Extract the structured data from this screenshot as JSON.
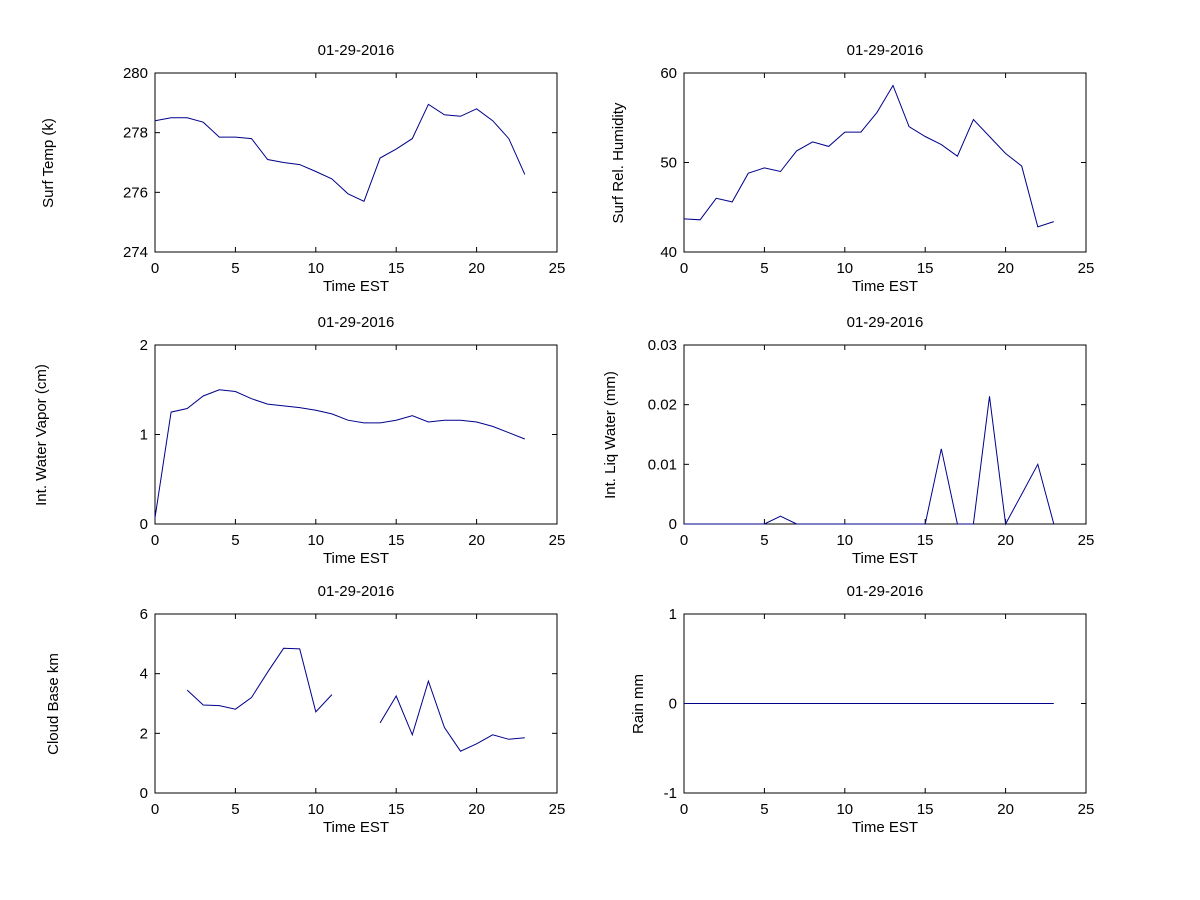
{
  "figure": {
    "background_color": "#ffffff",
    "axis_color": "#000000",
    "text_color": "#000000",
    "line_color": "#00008B"
  },
  "chart_data": [
    {
      "type": "line",
      "title": "01-29-2016",
      "xlabel": "Time EST",
      "ylabel": "Surf Temp (k)",
      "xlim": [
        0,
        25
      ],
      "ylim": [
        274,
        280
      ],
      "xticks": [
        "0",
        "5",
        "10",
        "15",
        "20",
        "25"
      ],
      "xtick_values": [
        0,
        5,
        10,
        15,
        20,
        25
      ],
      "yticks": [
        "274",
        "276",
        "278",
        "280"
      ],
      "ytick_values": [
        274,
        276,
        278,
        280
      ],
      "grid": false,
      "legend": null,
      "x": [
        0,
        1,
        2,
        3,
        4,
        5,
        6,
        7,
        8,
        9,
        10,
        11,
        12,
        13,
        14,
        15,
        16,
        17,
        18,
        19,
        20,
        21,
        22,
        23
      ],
      "y": [
        278.4,
        278.5,
        278.5,
        278.35,
        277.85,
        277.85,
        277.8,
        277.1,
        277.0,
        276.93,
        276.7,
        276.45,
        275.95,
        275.7,
        277.15,
        277.45,
        277.8,
        278.95,
        278.6,
        278.55,
        278.8,
        278.4,
        277.8,
        276.6
      ]
    },
    {
      "type": "line",
      "title": "01-29-2016",
      "xlabel": "Time EST",
      "ylabel": "Surf Rel. Humidity",
      "xlim": [
        0,
        25
      ],
      "ylim": [
        40,
        60
      ],
      "xticks": [
        "0",
        "5",
        "10",
        "15",
        "20",
        "25"
      ],
      "xtick_values": [
        0,
        5,
        10,
        15,
        20,
        25
      ],
      "yticks": [
        "40",
        "50",
        "60"
      ],
      "ytick_values": [
        40,
        50,
        60
      ],
      "grid": false,
      "legend": null,
      "x": [
        0,
        1,
        2,
        3,
        4,
        5,
        6,
        7,
        8,
        9,
        10,
        11,
        12,
        13,
        14,
        15,
        16,
        17,
        18,
        19,
        20,
        21,
        22,
        23
      ],
      "y": [
        43.7,
        43.6,
        46.0,
        45.6,
        48.8,
        49.4,
        49.0,
        51.3,
        52.3,
        51.8,
        53.4,
        53.4,
        55.6,
        58.6,
        54.0,
        52.9,
        52.0,
        50.7,
        54.8,
        52.9,
        51.0,
        49.6,
        42.8,
        43.4
      ]
    },
    {
      "type": "line",
      "title": "01-29-2016",
      "xlabel": "Time EST",
      "ylabel": "Int. Water Vapor (cm)",
      "xlim": [
        0,
        25
      ],
      "ylim": [
        0,
        2
      ],
      "xticks": [
        "0",
        "5",
        "10",
        "15",
        "20",
        "25"
      ],
      "xtick_values": [
        0,
        5,
        10,
        15,
        20,
        25
      ],
      "yticks": [
        "0",
        "1",
        "2"
      ],
      "ytick_values": [
        0,
        1,
        2
      ],
      "grid": false,
      "legend": null,
      "x": [
        0,
        1,
        2,
        3,
        4,
        5,
        6,
        7,
        8,
        9,
        10,
        11,
        12,
        13,
        14,
        15,
        16,
        17,
        18,
        19,
        20,
        21,
        22,
        23
      ],
      "y": [
        0.07,
        1.25,
        1.29,
        1.43,
        1.5,
        1.48,
        1.4,
        1.34,
        1.32,
        1.3,
        1.27,
        1.23,
        1.16,
        1.13,
        1.13,
        1.16,
        1.21,
        1.14,
        1.16,
        1.16,
        1.14,
        1.09,
        1.02,
        0.95
      ]
    },
    {
      "type": "line",
      "title": "01-29-2016",
      "xlabel": "Time EST",
      "ylabel": "Int. Liq Water (mm)",
      "xlim": [
        0,
        25
      ],
      "ylim": [
        0,
        0.03
      ],
      "xticks": [
        "0",
        "5",
        "10",
        "15",
        "20",
        "25"
      ],
      "xtick_values": [
        0,
        5,
        10,
        15,
        20,
        25
      ],
      "yticks": [
        "0",
        "0.01",
        "0.02",
        "0.03"
      ],
      "ytick_values": [
        0,
        0.01,
        0.02,
        0.03
      ],
      "grid": false,
      "legend": null,
      "x": [
        0,
        1,
        2,
        3,
        4,
        5,
        6,
        7,
        8,
        9,
        10,
        11,
        12,
        13,
        14,
        15,
        16,
        17,
        18,
        19,
        20,
        21,
        22,
        23
      ],
      "y": [
        0,
        0,
        0,
        0,
        0,
        0,
        0.0013,
        0,
        0,
        0,
        0,
        0,
        0,
        0,
        0,
        0,
        0.0126,
        0,
        0,
        0.0214,
        0,
        0.005,
        0.01,
        0
      ]
    },
    {
      "type": "line",
      "title": "01-29-2016",
      "xlabel": "Time EST",
      "ylabel": "Cloud Base km",
      "xlim": [
        0,
        25
      ],
      "ylim": [
        0,
        6
      ],
      "xticks": [
        "0",
        "5",
        "10",
        "15",
        "20",
        "25"
      ],
      "xtick_values": [
        0,
        5,
        10,
        15,
        20,
        25
      ],
      "yticks": [
        "0",
        "2",
        "4",
        "6"
      ],
      "ytick_values": [
        0,
        2,
        4,
        6
      ],
      "grid": false,
      "legend": null,
      "x": [
        0,
        1,
        2,
        3,
        4,
        5,
        6,
        7,
        8,
        9,
        10,
        11,
        12,
        13,
        14,
        15,
        16,
        17,
        18,
        19,
        20,
        21,
        22,
        23
      ],
      "y": [
        null,
        null,
        3.45,
        2.95,
        2.93,
        2.81,
        3.2,
        4.05,
        4.85,
        4.83,
        2.72,
        3.3,
        null,
        null,
        2.35,
        3.25,
        1.95,
        3.75,
        2.2,
        1.4,
        1.65,
        1.95,
        1.8,
        1.85
      ]
    },
    {
      "type": "line",
      "title": "01-29-2016",
      "xlabel": "Time EST",
      "ylabel": "Rain mm",
      "xlim": [
        0,
        25
      ],
      "ylim": [
        -1,
        1
      ],
      "xticks": [
        "0",
        "5",
        "10",
        "15",
        "20",
        "25"
      ],
      "xtick_values": [
        0,
        5,
        10,
        15,
        20,
        25
      ],
      "yticks": [
        "-1",
        "0",
        "1"
      ],
      "ytick_values": [
        -1,
        0,
        1
      ],
      "grid": false,
      "legend": null,
      "x": [
        0,
        1,
        2,
        3,
        4,
        5,
        6,
        7,
        8,
        9,
        10,
        11,
        12,
        13,
        14,
        15,
        16,
        17,
        18,
        19,
        20,
        21,
        22,
        23
      ],
      "y": [
        0,
        0,
        0,
        0,
        0,
        0,
        0,
        0,
        0,
        0,
        0,
        0,
        0,
        0,
        0,
        0,
        0,
        0,
        0,
        0,
        0,
        0,
        0,
        0
      ]
    }
  ]
}
